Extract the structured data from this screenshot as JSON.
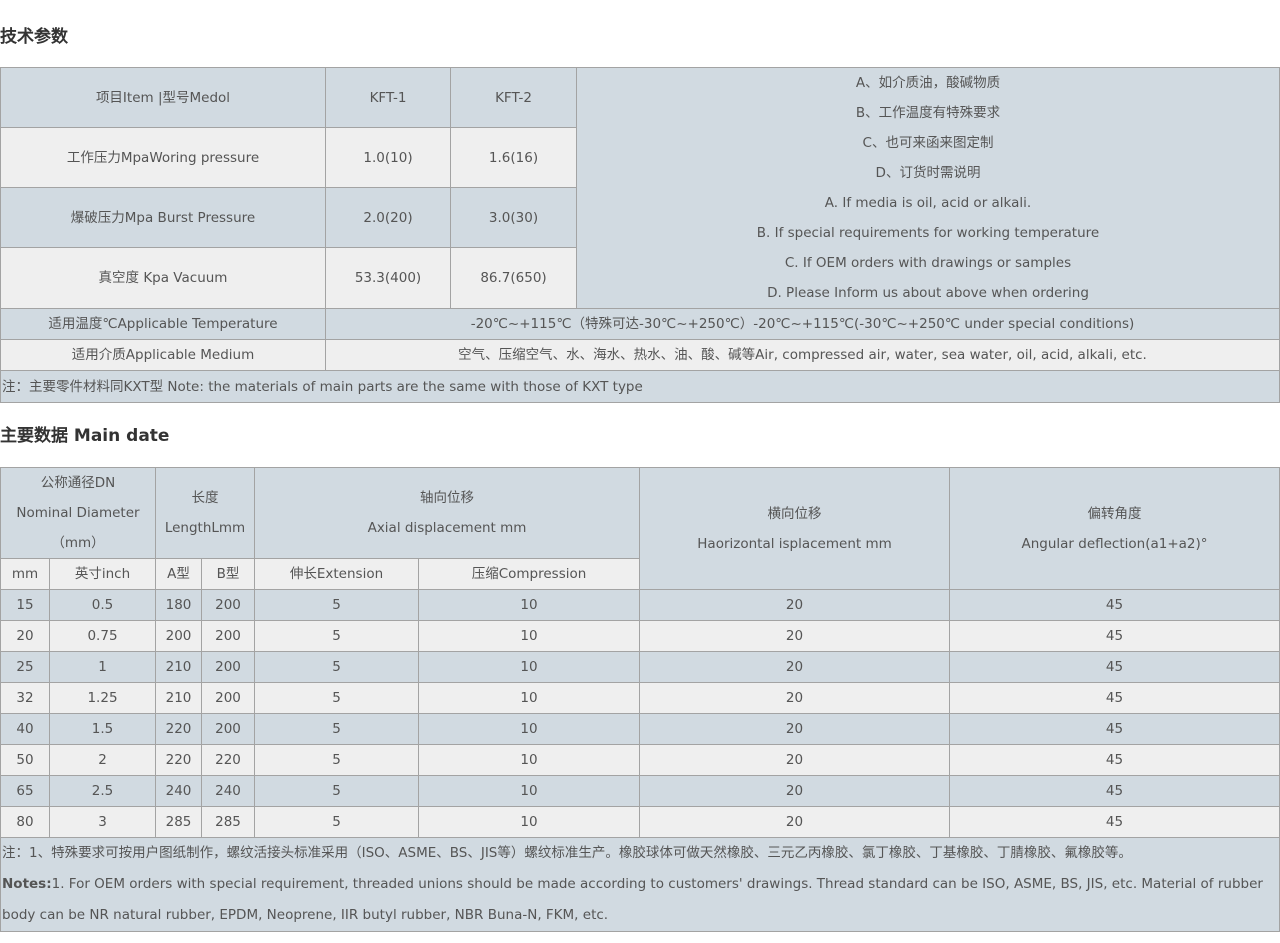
{
  "section1": {
    "title": "技术参数",
    "header": [
      "项目Item |型号Medol",
      "KFT-1",
      "KFT-2"
    ],
    "rows": [
      [
        "工作压力MpaWoring pressure",
        "1.0(10)",
        "1.6(16)"
      ],
      [
        "爆破压力Mpa Burst Pressure",
        "2.0(20)",
        "3.0(30)"
      ],
      [
        "真空度 Kpa Vacuum",
        "53.3(400)",
        "86.7(650)"
      ]
    ],
    "remarks": [
      "A、如介质油，酸碱物质",
      "B、工作温度有特殊要求",
      "C、也可来函来图定制",
      "D、订货时需说明",
      "A. If media is oil, acid or alkali.",
      "B. If special requirements for working temperature",
      "C. If OEM orders with drawings or samples",
      "D. Please Inform us about above when ordering"
    ],
    "temperature": {
      "label": "适用温度℃Applicable Temperature",
      "value": "-20℃~+115℃（特殊可达-30℃~+250℃）-20℃~+115℃(-30℃~+250℃ under special conditions)"
    },
    "medium": {
      "label": "适用介质Applicable Medium",
      "value": "空气、压缩空气、水、海水、热水、油、酸、碱等Air, compressed air, water, sea water, oil, acid, alkali, etc."
    },
    "note": "注：主要零件材料同KXT型 Note: the materials of main parts are the same with those of KXT type"
  },
  "section2": {
    "title": "主要数据 Main date",
    "headers": {
      "dn": [
        "公称通径DN",
        "Nominal Diameter",
        "（mm）"
      ],
      "length": [
        "长度",
        "LengthLmm"
      ],
      "axial": [
        "轴向位移",
        "Axial displacement mm"
      ],
      "lateral": [
        "横向位移",
        "Haorizontal isplacement mm"
      ],
      "angular": [
        "偏转角度",
        "Angular deflection(a1+a2)°"
      ],
      "sub": [
        "mm",
        "英寸inch",
        "A型",
        "B型",
        "伸长Extension",
        "压缩Compression"
      ]
    },
    "rows": [
      [
        "15",
        "0.5",
        "180",
        "200",
        "5",
        "10",
        "20",
        "45"
      ],
      [
        "20",
        "0.75",
        "200",
        "200",
        "5",
        "10",
        "20",
        "45"
      ],
      [
        "25",
        "1",
        "210",
        "200",
        "5",
        "10",
        "20",
        "45"
      ],
      [
        "32",
        "1.25",
        "210",
        "200",
        "5",
        "10",
        "20",
        "45"
      ],
      [
        "40",
        "1.5",
        "220",
        "200",
        "5",
        "10",
        "20",
        "45"
      ],
      [
        "50",
        "2",
        "220",
        "220",
        "5",
        "10",
        "20",
        "45"
      ],
      [
        "65",
        "2.5",
        "240",
        "240",
        "5",
        "10",
        "20",
        "45"
      ],
      [
        "80",
        "3",
        "285",
        "285",
        "5",
        "10",
        "20",
        "45"
      ]
    ],
    "note_cn": "注：1、特殊要求可按用户图纸制作，螺纹活接头标准采用（ISO、ASME、BS、JIS等）螺纹标准生产。橡胶球体可做天然橡胶、三元乙丙橡胶、氯丁橡胶、丁基橡胶、丁腈橡胶、氟橡胶等。",
    "note_en_label": "Notes:",
    "note_en": "1. For OEM orders with special requirement, threaded unions should be made according to customers' drawings. Thread standard can be ISO, ASME, BS, JIS, etc. Material of rubber body can be NR natural rubber, EPDM, Neoprene, IIR butyl rubber, NBR Buna-N, FKM, etc."
  }
}
